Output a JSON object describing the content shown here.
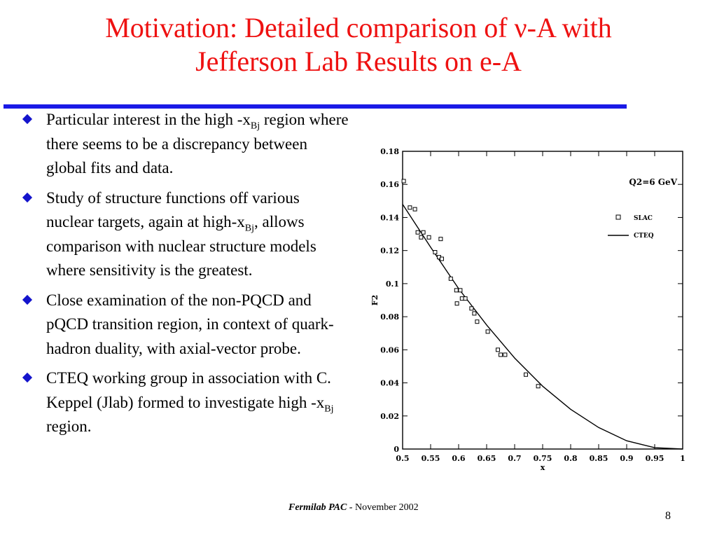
{
  "slide": {
    "title_line1": "Motivation:  Detailed comparison of ν-A with",
    "title_line2": "Jefferson Lab Results on e-A",
    "bullets": [
      {
        "parts": [
          "Particular interest in the high -x",
          "Bj",
          " region where there seems to be a discrepancy between global fits and data."
        ]
      },
      {
        "parts": [
          "Study of structure functions off various nuclear targets, again at high-x",
          "Bj",
          ", allows comparison with nuclear structure models where sensitivity is the greatest."
        ]
      },
      {
        "parts": [
          "Close examination of the non-PQCD and pQCD transition region, in context  of quark-hadron duality, with axial-vector probe."
        ]
      },
      {
        "parts": [
          "CTEQ working group in association with C. Keppel (Jlab) formed to investigate high -x",
          "Bj",
          " region."
        ]
      }
    ],
    "footer_label": "Fermilab PAC - ",
    "footer_date": " November 2002",
    "page_number": "8"
  },
  "chart_data": {
    "type": "scatter",
    "annotation": "Q2=6 GeV",
    "xlabel": "x",
    "ylabel": "F2",
    "xlim": [
      0.5,
      1.0
    ],
    "ylim": [
      0,
      0.18
    ],
    "x_ticks": [
      "0.5",
      "0.55",
      "0.6",
      "0.65",
      "0.7",
      "0.75",
      "0.8",
      "0.85",
      "0.9",
      "0.95",
      "1"
    ],
    "y_ticks": [
      "0",
      "0.02",
      "0.04",
      "0.06",
      "0.08",
      "0.1",
      "0.12",
      "0.14",
      "0.16",
      "0.18"
    ],
    "legend_position": "right",
    "series": [
      {
        "name": "SLAC",
        "marker": "open-square",
        "points": [
          [
            0.502,
            0.162
          ],
          [
            0.513,
            0.146
          ],
          [
            0.522,
            0.145
          ],
          [
            0.527,
            0.131
          ],
          [
            0.533,
            0.128
          ],
          [
            0.537,
            0.131
          ],
          [
            0.547,
            0.128
          ],
          [
            0.558,
            0.119
          ],
          [
            0.565,
            0.116
          ],
          [
            0.568,
            0.127
          ],
          [
            0.57,
            0.115
          ],
          [
            0.586,
            0.103
          ],
          [
            0.596,
            0.096
          ],
          [
            0.597,
            0.088
          ],
          [
            0.603,
            0.096
          ],
          [
            0.606,
            0.091
          ],
          [
            0.612,
            0.091
          ],
          [
            0.623,
            0.085
          ],
          [
            0.628,
            0.082
          ],
          [
            0.633,
            0.077
          ],
          [
            0.652,
            0.071
          ],
          [
            0.67,
            0.06
          ],
          [
            0.675,
            0.057
          ],
          [
            0.683,
            0.057
          ],
          [
            0.72,
            0.045
          ],
          [
            0.742,
            0.038
          ]
        ]
      },
      {
        "name": "CTEQ",
        "line": "solid",
        "points": [
          [
            0.5,
            0.148
          ],
          [
            0.55,
            0.122
          ],
          [
            0.6,
            0.097
          ],
          [
            0.65,
            0.075
          ],
          [
            0.7,
            0.055
          ],
          [
            0.75,
            0.038
          ],
          [
            0.8,
            0.024
          ],
          [
            0.85,
            0.013
          ],
          [
            0.9,
            0.005
          ],
          [
            0.95,
            0.0008
          ],
          [
            1.0,
            0.0
          ]
        ]
      }
    ]
  }
}
